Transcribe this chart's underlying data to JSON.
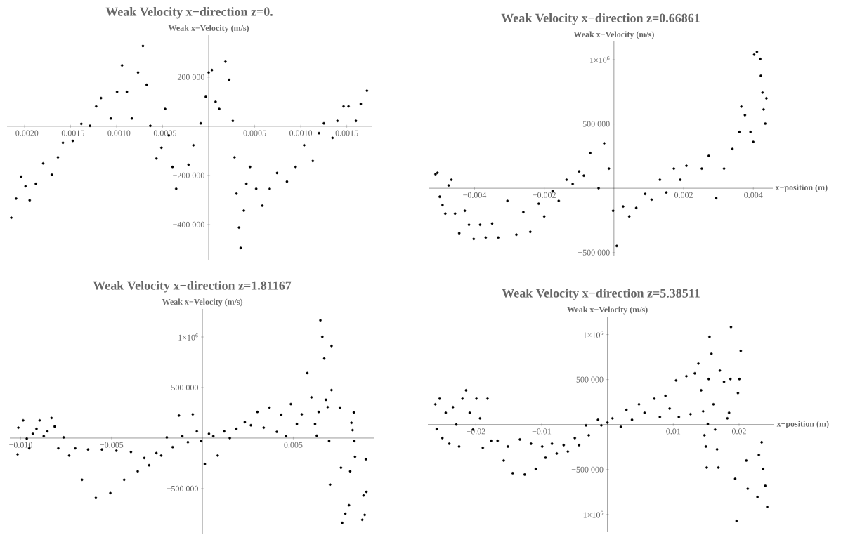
{
  "chart_data": [
    {
      "type": "scatter",
      "title": "Weak Velocity x−direction z=0.",
      "ylabel": "Weak x−Velocity (m/s)",
      "color": "#000000",
      "marker": "circle",
      "xlim": [
        -0.00219,
        0.00177
      ],
      "ylim": [
        -543000,
        371000
      ],
      "xticks": [
        {
          "value": -0.002,
          "label": "−0.0020"
        },
        {
          "value": -0.0015,
          "label": "−0.0015"
        },
        {
          "value": -0.001,
          "label": "−0.0010"
        },
        {
          "value": -0.0005,
          "label": "−0.0005"
        },
        {
          "value": 0.0005,
          "label": "0.0005"
        },
        {
          "value": 0.001,
          "label": "0.0010"
        },
        {
          "value": 0.0015,
          "label": "0.0015"
        }
      ],
      "yticks": [
        {
          "value": 200000,
          "label": "200 000"
        },
        {
          "value": -200000,
          "label": "−200 000"
        },
        {
          "value": -400000,
          "label": "−400 000"
        }
      ],
      "x": [
        -0.002144,
        -0.002091,
        -0.002037,
        -0.001989,
        -0.001944,
        -0.001877,
        -0.001797,
        -0.001703,
        -0.001637,
        -0.001583,
        -0.001476,
        -0.001383,
        -0.001289,
        -0.001222,
        -0.001169,
        -0.001062,
        -0.000995,
        -0.000941,
        -0.000888,
        -0.000834,
        -0.000767,
        -0.000714,
        -0.000674,
        -0.000634,
        -0.000567,
        -0.000513,
        -0.000473,
        -0.000433,
        -0.000393,
        -0.000353,
        -0.000219,
        -0.000166,
        -8.6e-05,
        -3.2e-05,
        0,
        3.5e-05,
        7.5e-05,
        0.000115,
        0.000182,
        0.000222,
        0.000262,
        0.000281,
        0.000302,
        0.000329,
        0.000348,
        0.000382,
        0.000409,
        0.000449,
        0.000516,
        0.000583,
        0.000663,
        0.000743,
        0.00085,
        0.000944,
        0.001037,
        0.001131,
        0.001198,
        0.001251,
        0.001345,
        0.001398,
        0.001465,
        0.001519,
        0.001599,
        0.001652,
        0.001719
      ],
      "values": [
        -372000,
        -294000,
        -205000,
        -244000,
        -301000,
        -234000,
        -151000,
        -197000,
        -126000,
        -67000,
        -59000,
        10000,
        2000,
        81000,
        115000,
        32000,
        140000,
        248000,
        140000,
        32000,
        219000,
        327000,
        169000,
        2000,
        -131000,
        -87000,
        71000,
        -37000,
        -165000,
        -254000,
        -156000,
        -77000,
        12000,
        120000,
        219000,
        229000,
        100000,
        71000,
        263000,
        189000,
        22000,
        -126000,
        -274000,
        -412000,
        -495000,
        -343000,
        -234000,
        -165000,
        -254000,
        -323000,
        -254000,
        -190000,
        -225000,
        -165000,
        -77000,
        -141000,
        -28000,
        12000,
        -47000,
        22000,
        81000,
        81000,
        22000,
        91000,
        145000
      ]
    },
    {
      "type": "scatter",
      "title": "Weak Velocity x−direction z=0.66861",
      "ylabel": "Weak x−Velocity (m/s)",
      "xlabel": "x−position (m)",
      "color": "#000000",
      "marker": "circle",
      "xlim": [
        -0.00532,
        0.00456
      ],
      "ylim": [
        -529000,
        1142000
      ],
      "xticks": [
        {
          "value": -0.004,
          "label": "−0.004"
        },
        {
          "value": -0.002,
          "label": "−0.002"
        },
        0.002,
        0.004
      ],
      "yticks": [
        {
          "value": 1000000,
          "label": "1×10$^{6}$"
        },
        {
          "value": 500000,
          "label": "500 000"
        },
        {
          "value": -500000,
          "label": "−500 000"
        }
      ],
      "x": [
        -0.00512,
        -0.005064,
        -0.005,
        -0.00492,
        -0.00484,
        -0.004744,
        -0.004664,
        -0.00456,
        -0.00444,
        -0.00428,
        -0.00416,
        -0.004024,
        -0.00384,
        -0.00368,
        -0.003496,
        -0.00332,
        -0.003056,
        -0.0028,
        -0.0026,
        -0.0024,
        -0.00216,
        -0.002,
        -0.00176,
        -0.001584,
        -0.00136,
        -0.001184,
        -0.001,
        -0.000864,
        -0.00068,
        -0.00044,
        -0.00028,
        -0.000144,
        -2.4e-05,
        8e-05,
        0.000264,
        0.00044,
        0.00064,
        0.000896,
        0.00108,
        0.00132,
        0.001504,
        0.00172,
        0.001904,
        0.00208,
        0.00252,
        0.00272,
        0.002936,
        0.00316,
        0.0034,
        0.0036,
        0.003656,
        0.00376,
        0.00392,
        0.004,
        0.004024,
        0.004104,
        0.0042,
        0.004216,
        0.004264,
        0.004296,
        0.004344,
        0.004376
      ],
      "values": [
        109000,
        120000,
        -66000,
        -131000,
        -197000,
        22000,
        66000,
        -197000,
        -350000,
        -175000,
        -284000,
        -394000,
        -284000,
        -383000,
        -274000,
        -383000,
        -98000,
        -361000,
        -186000,
        -339000,
        -120000,
        -219000,
        -22000,
        -98000,
        66000,
        33000,
        131000,
        98000,
        274000,
        0,
        350000,
        153000,
        -175000,
        -449000,
        -142000,
        -219000,
        -153000,
        -44000,
        -88000,
        66000,
        -33000,
        153000,
        66000,
        175000,
        153000,
        252000,
        -77000,
        153000,
        306000,
        438000,
        635000,
        569000,
        438000,
        361000,
        1039000,
        1061000,
        1006000,
        875000,
        744000,
        613000,
        503000,
        700000
      ]
    },
    {
      "type": "scatter",
      "title": "Weak Velocity x−direction z=1.81167",
      "ylabel": "Weak x−Velocity (m/s)",
      "color": "#000000",
      "marker": "circle",
      "xlim": [
        -0.0106,
        0.00947
      ],
      "ylim": [
        -952000,
        1278000
      ],
      "xticks": [
        {
          "value": -0.01,
          "label": "−0.010"
        },
        {
          "value": -0.005,
          "label": "−0.005"
        },
        0.005
      ],
      "yticks": [
        {
          "value": 1000000,
          "label": "1×10$^{6}$"
        },
        {
          "value": 500000,
          "label": "500 000"
        },
        {
          "value": -500000,
          "label": "−500 000"
        }
      ],
      "x": [
        -0.010173,
        -0.010133,
        -0.009867,
        -0.009667,
        -0.009533,
        -0.009333,
        -0.009133,
        -0.00896,
        -0.008733,
        -0.008533,
        -0.008307,
        -0.008133,
        -0.007933,
        -0.00764,
        -0.007333,
        -0.007,
        -0.006627,
        -0.006293,
        -0.005867,
        -0.005533,
        -0.005067,
        -0.004733,
        -0.004307,
        -0.003933,
        -0.00356,
        -0.0032,
        -0.002933,
        -0.002533,
        -0.002267,
        -0.00196,
        -0.00164,
        -0.001293,
        -0.001107,
        -0.0008,
        -0.000533,
        -0.000307,
        -6.7e-05,
        0.000133,
        0.00036,
        0.0006,
        0.00084,
        0.0012,
        0.001507,
        0.001867,
        0.002333,
        0.002667,
        0.003027,
        0.003373,
        0.003693,
        0.004093,
        0.004333,
        0.0046,
        0.004867,
        0.0052,
        0.005467,
        0.005773,
        0.006,
        0.0062,
        0.006293,
        0.0064,
        0.006493,
        0.0066,
        0.006707,
        0.0068,
        0.006893,
        0.006973,
        0.007027,
        0.007107,
        0.007107,
        0.007573,
        0.007627,
        0.007693,
        0.007867,
        0.008067,
        0.008133,
        0.0082,
        0.008267,
        0.008333,
        0.00836,
        0.0084,
        0.0088,
        0.008867,
        0.008933,
        0.009,
        0.009027
      ],
      "values": [
        -161000,
        103000,
        175000,
        -5000,
        -101000,
        43000,
        91000,
        175000,
        19000,
        67000,
        199000,
        115000,
        -101000,
        7000,
        -173000,
        -101000,
        -412000,
        -113000,
        -592000,
        -113000,
        -544000,
        -125000,
        -412000,
        -137000,
        -329000,
        -197000,
        -269000,
        -149000,
        -173000,
        7000,
        -89000,
        223000,
        19000,
        -41000,
        235000,
        67000,
        -29000,
        -257000,
        43000,
        19000,
        -173000,
        67000,
        0,
        91000,
        158000,
        127000,
        259000,
        103000,
        302000,
        62000,
        230000,
        19000,
        336000,
        139000,
        235000,
        643000,
        403000,
        139000,
        24000,
        259000,
        1165000,
        1002000,
        787000,
        379000,
        307000,
        -29000,
        -460000,
        911000,
        475000,
        302000,
        -293000,
        -839000,
        -748000,
        -664000,
        -329000,
        151000,
        79000,
        254000,
        -29000,
        -185000,
        -808000,
        -568000,
        -760000,
        -209000,
        -532000
      ]
    },
    {
      "type": "scatter",
      "title": "Weak Velocity x−direction z=5.38511",
      "ylabel": "Weak x−Velocity (m/s)",
      "xlabel": "x−position (m)",
      "color": "#000000",
      "marker": "circle",
      "xlim": [
        -0.02729,
        0.02534
      ],
      "ylim": [
        -1197000,
        1200000
      ],
      "xticks": [
        {
          "value": -0.02,
          "label": "−0.02"
        },
        {
          "value": -0.01,
          "label": "−0.01"
        },
        0.01,
        0.02
      ],
      "yticks": [
        {
          "value": 1000000,
          "label": "1×10$^{6}$"
        },
        {
          "value": 500000,
          "label": "500 000"
        },
        {
          "value": -500000,
          "label": "−500 000"
        },
        {
          "value": -1000000,
          "label": "−1×10$^{6}$"
        }
      ],
      "x": [
        -0.026144,
        -0.025932,
        -0.025508,
        -0.025085,
        -0.024576,
        -0.024025,
        -0.023475,
        -0.022966,
        -0.022542,
        -0.022034,
        -0.021483,
        -0.020932,
        -0.020424,
        -0.019915,
        -0.019364,
        -0.018941,
        -0.01822,
        -0.01767,
        -0.016695,
        -0.015763,
        -0.015127,
        -0.014407,
        -0.013305,
        -0.012585,
        -0.01161,
        -0.01089,
        -0.009915,
        -0.009407,
        -0.008432,
        -0.007712,
        -0.006653,
        -0.006017,
        -0.004958,
        -0.004322,
        -0.003263,
        -0.002839,
        -0.001441,
        -0.000932,
        0,
        0.000763,
        0.002034,
        0.002881,
        0.003729,
        0.004788,
        0.005636,
        0.007119,
        0.007966,
        0.008814,
        0.009449,
        0.010424,
        0.010847,
        0.011992,
        0.012627,
        0.013263,
        0.013814,
        0.014237,
        0.014534,
        0.014746,
        0.014958,
        0.015085,
        0.015254,
        0.015381,
        0.015508,
        0.015805,
        0.016102,
        0.016356,
        0.016653,
        0.016864,
        0.017076,
        0.017712,
        0.01822,
        0.018475,
        0.018686,
        0.018771,
        0.019407,
        0.019619,
        0.019831,
        0.020042,
        0.020254,
        0.021102,
        0.021314,
        0.022797,
        0.023008,
        0.023432,
        0.023644,
        0.023983,
        0.02428
      ],
      "values": [
        225000,
        -50000,
        288000,
        -150000,
        131000,
        -213000,
        194000,
        0,
        -244000,
        288000,
        381000,
        131000,
        -56000,
        288000,
        69000,
        -259000,
        288000,
        -181000,
        -181000,
        -400000,
        -244000,
        -541000,
        -166000,
        -556000,
        -213000,
        -494000,
        -244000,
        -369000,
        -213000,
        -322000,
        -228000,
        -300000,
        -150000,
        -228000,
        -9000,
        -119000,
        53000,
        -9000,
        22000,
        69000,
        -25000,
        163000,
        53000,
        225000,
        131000,
        288000,
        84000,
        319000,
        178000,
        491000,
        84000,
        538000,
        116000,
        569000,
        678000,
        381000,
        147000,
        -119000,
        -244000,
        -478000,
        6000,
        506000,
        975000,
        788000,
        225000,
        -56000,
        -275000,
        -478000,
        600000,
        475000,
        69000,
        131000,
        506000,
        1084000,
        -603000,
        -1072000,
        350000,
        506000,
        819000,
        -400000,
        -713000,
        -806000,
        -338000,
        -197000,
        -494000,
        -681000,
        -916000
      ]
    }
  ]
}
